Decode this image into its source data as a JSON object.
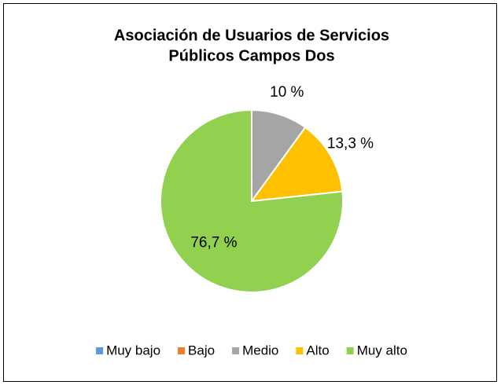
{
  "chart_data": {
    "type": "pie",
    "title": [
      "Asociación de Usuarios de Servicios",
      "Públicos Campos Dos"
    ],
    "categories": [
      "Muy bajo",
      "Bajo",
      "Medio",
      "Alto",
      "Muy alto"
    ],
    "values": [
      0,
      0,
      10,
      13.3,
      76.7
    ],
    "value_labels": [
      null,
      null,
      "10 %",
      "13,3 %",
      "76,7 %"
    ],
    "colors": [
      "#5b9bd5",
      "#ed7d31",
      "#a5a5a5",
      "#ffc000",
      "#92d050"
    ],
    "legend": "bottom"
  }
}
